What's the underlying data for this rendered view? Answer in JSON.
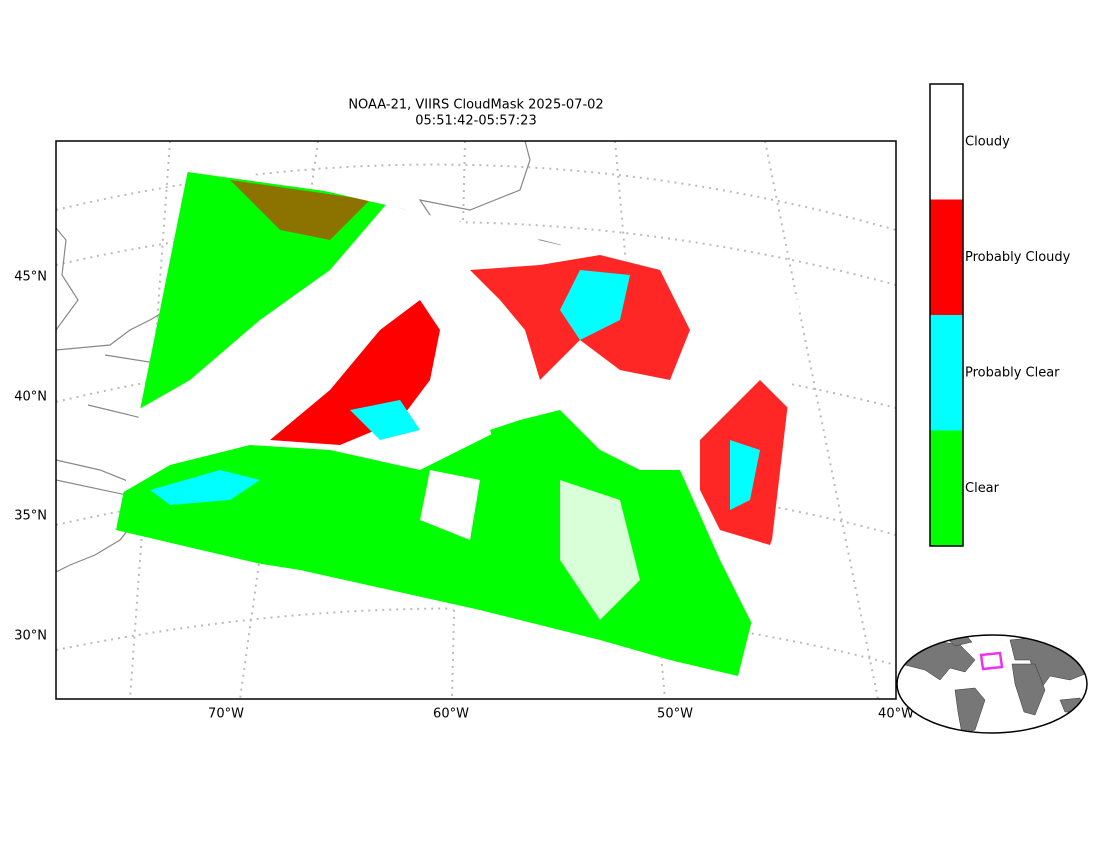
{
  "title": [
    "NOAA-21, VIIRS CloudMask 2025-07-02",
    "05:51:42-05:57:23"
  ],
  "lat_labels": [
    "45°N",
    "40°N",
    "35°N",
    "30°N"
  ],
  "lon_labels": [
    "70°W",
    "60°W",
    "50°W",
    "40°W"
  ],
  "legend": [
    {
      "label": "Cloudy",
      "color": "#ffffff"
    },
    {
      "label": "Probably Cloudy",
      "color": "#ff0000"
    },
    {
      "label": "Probably Clear",
      "color": "#00ffff"
    },
    {
      "label": "Clear",
      "color": "#00ff00"
    }
  ]
}
